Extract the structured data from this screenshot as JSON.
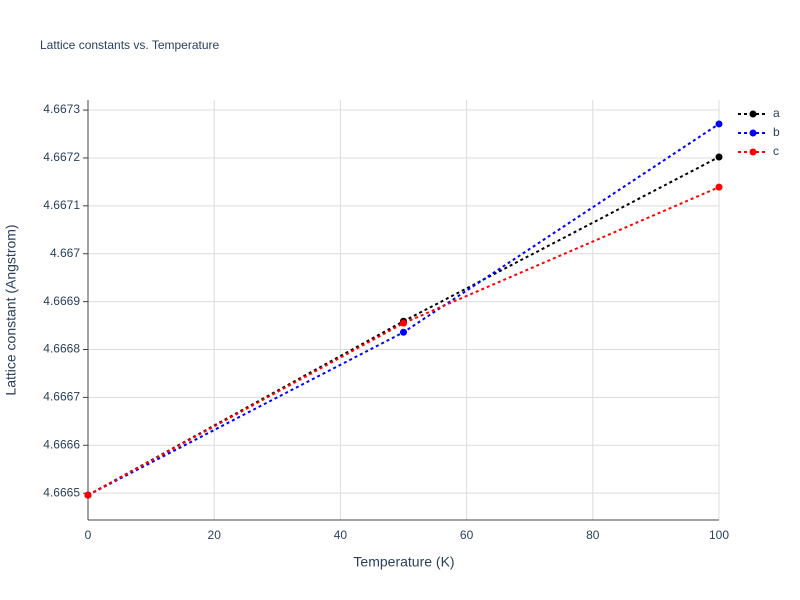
{
  "chart_data": {
    "type": "line",
    "title": "Lattice constants vs. Temperature",
    "x_label": "Temperature (K)",
    "y_label": "Lattice constant (Angstrom)",
    "x": [
      0,
      50,
      100
    ],
    "series": [
      {
        "name": "a",
        "color": "#000000",
        "values": [
          4.666496,
          4.666859,
          4.667202
        ]
      },
      {
        "name": "b",
        "color": "#0000ff",
        "values": [
          4.666496,
          4.666836,
          4.667271
        ]
      },
      {
        "name": "c",
        "color": "#ff0000",
        "values": [
          4.666496,
          4.666855,
          4.667139
        ]
      }
    ],
    "xlim": [
      0,
      100
    ],
    "xticks": [
      0,
      20,
      40,
      60,
      80,
      100
    ],
    "ylim": [
      4.666444,
      4.667321
    ],
    "yticks": [
      4.6665,
      4.6666,
      4.6667,
      4.6668,
      4.6669,
      4.667,
      4.6671,
      4.6672,
      4.6673
    ],
    "grid": true,
    "legend": "top-right"
  }
}
